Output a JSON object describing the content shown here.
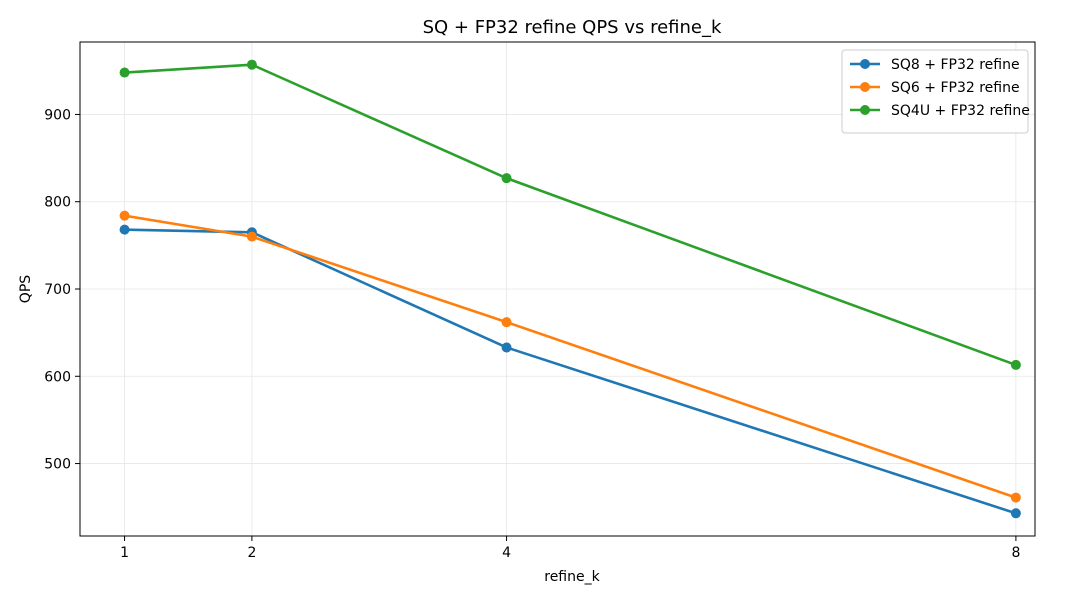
{
  "chart_data": {
    "type": "line",
    "title": "SQ + FP32 refine QPS vs refine_k",
    "xlabel": "refine_k",
    "ylabel": "QPS",
    "x": [
      1,
      2,
      4,
      8
    ],
    "xlim": [
      0.65,
      8.15
    ],
    "ylim": [
      417,
      983
    ],
    "yticks": [
      500,
      600,
      700,
      800,
      900
    ],
    "xticks": [
      1,
      2,
      4,
      8
    ],
    "grid": true,
    "legend_position": "top-right",
    "series": [
      {
        "name": "SQ8 + FP32 refine",
        "color": "#1f77b4",
        "values": [
          768,
          765,
          633,
          443
        ]
      },
      {
        "name": "SQ6 + FP32 refine",
        "color": "#ff7f0e",
        "values": [
          784,
          760,
          662,
          461
        ]
      },
      {
        "name": "SQ4U + FP32 refine",
        "color": "#2ca02c",
        "values": [
          948,
          957,
          827,
          613
        ]
      }
    ]
  }
}
